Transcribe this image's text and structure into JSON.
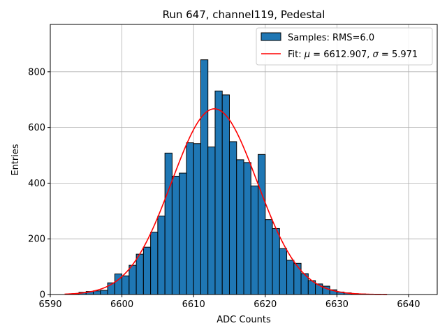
{
  "chart_data": {
    "type": "bar",
    "title": "Run 647, channel119, Pedestal",
    "xlabel": "ADC Counts",
    "ylabel": "Entries",
    "xlim": [
      6590,
      6644
    ],
    "ylim": [
      0,
      970
    ],
    "xticks": [
      6590,
      6600,
      6610,
      6620,
      6630,
      6640
    ],
    "yticks": [
      0,
      200,
      400,
      600,
      800
    ],
    "grid": true,
    "legend_position": "top-right",
    "bar_color": "#1f77b4",
    "fit_color": "#ff0000",
    "histogram": {
      "name": "Samples: RMS=6.0",
      "bin_width": 1,
      "bins": [
        [
          6593,
          3
        ],
        [
          6594,
          8
        ],
        [
          6595,
          11
        ],
        [
          6596,
          13
        ],
        [
          6597,
          15
        ],
        [
          6598,
          42
        ],
        [
          6599,
          74
        ],
        [
          6600,
          67
        ],
        [
          6601,
          105
        ],
        [
          6602,
          145
        ],
        [
          6603,
          170
        ],
        [
          6604,
          224
        ],
        [
          6605,
          282
        ],
        [
          6606,
          508
        ],
        [
          6607,
          425
        ],
        [
          6608,
          436
        ],
        [
          6609,
          545
        ],
        [
          6610,
          542
        ],
        [
          6611,
          843
        ],
        [
          6612,
          530
        ],
        [
          6613,
          731
        ],
        [
          6614,
          717
        ],
        [
          6615,
          549
        ],
        [
          6616,
          484
        ],
        [
          6617,
          474
        ],
        [
          6618,
          390
        ],
        [
          6619,
          503
        ],
        [
          6620,
          269
        ],
        [
          6621,
          237
        ],
        [
          6622,
          165
        ],
        [
          6623,
          123
        ],
        [
          6624,
          112
        ],
        [
          6625,
          75
        ],
        [
          6626,
          50
        ],
        [
          6627,
          38
        ],
        [
          6628,
          30
        ],
        [
          6629,
          17
        ],
        [
          6630,
          9
        ],
        [
          6631,
          6
        ],
        [
          6632,
          3
        ],
        [
          6633,
          2
        ],
        [
          6634,
          1
        ]
      ]
    },
    "fit": {
      "name": "Fit: μ = 6612.907, σ = 5.971",
      "label_prefix": "Fit: ",
      "mu_text": "6612.907",
      "sigma_text": "5.971",
      "mu": 6612.907,
      "sigma": 5.971,
      "amplitude": 667,
      "x_range": [
        6592,
        6637
      ]
    }
  }
}
